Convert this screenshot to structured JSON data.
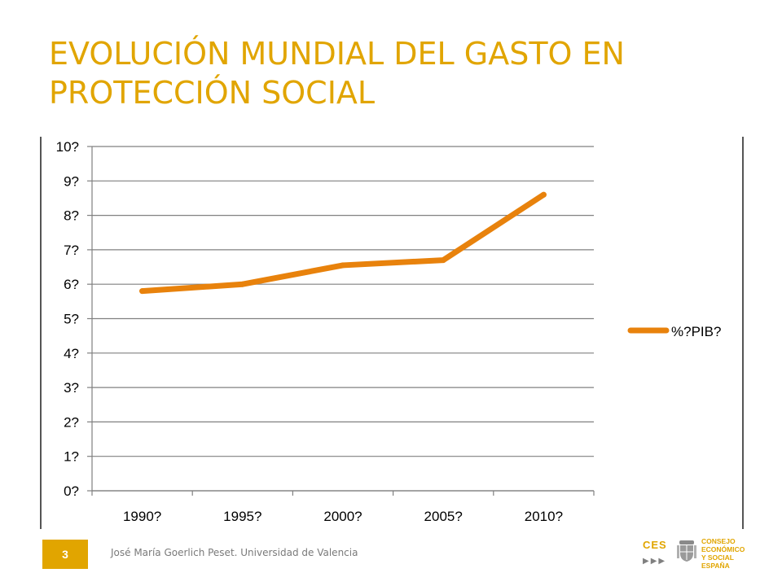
{
  "slide": {
    "title": "EVOLUCIÓN MUNDIAL DEL GASTO EN PROTECCIÓN SOCIAL",
    "page_number": "3",
    "footer": "José María Goerlich Peset. Universidad de Valencia"
  },
  "logo": {
    "mark": "CES",
    "arrows": "▶▶▶",
    "lines": [
      "CONSEJO",
      "ECONÓMICO",
      "Y SOCIAL",
      "ESPAÑA"
    ],
    "emblem_icon": "coat-of-arms-icon"
  },
  "colors": {
    "accent": "#E1A500",
    "series": "#E8820C",
    "grid": "#808080",
    "badge": "#E1A500"
  },
  "chart_data": {
    "type": "line",
    "categories": [
      "1990",
      "1995",
      "2000",
      "2005",
      "2010"
    ],
    "x_tick_labels": [
      "1990",
      "1995",
      "2000",
      "2005",
      "2010"
    ],
    "series": [
      {
        "name": "% PIB",
        "values": [
          5.8,
          6.0,
          6.55,
          6.7,
          8.6
        ]
      }
    ],
    "y_tick_labels": [
      "0",
      "1",
      "2",
      "3",
      "4",
      "5",
      "6",
      "7",
      "8",
      "9",
      "10"
    ],
    "ylim": [
      0,
      10
    ],
    "grid": true,
    "legend": "right",
    "tick_marker": "?"
  }
}
